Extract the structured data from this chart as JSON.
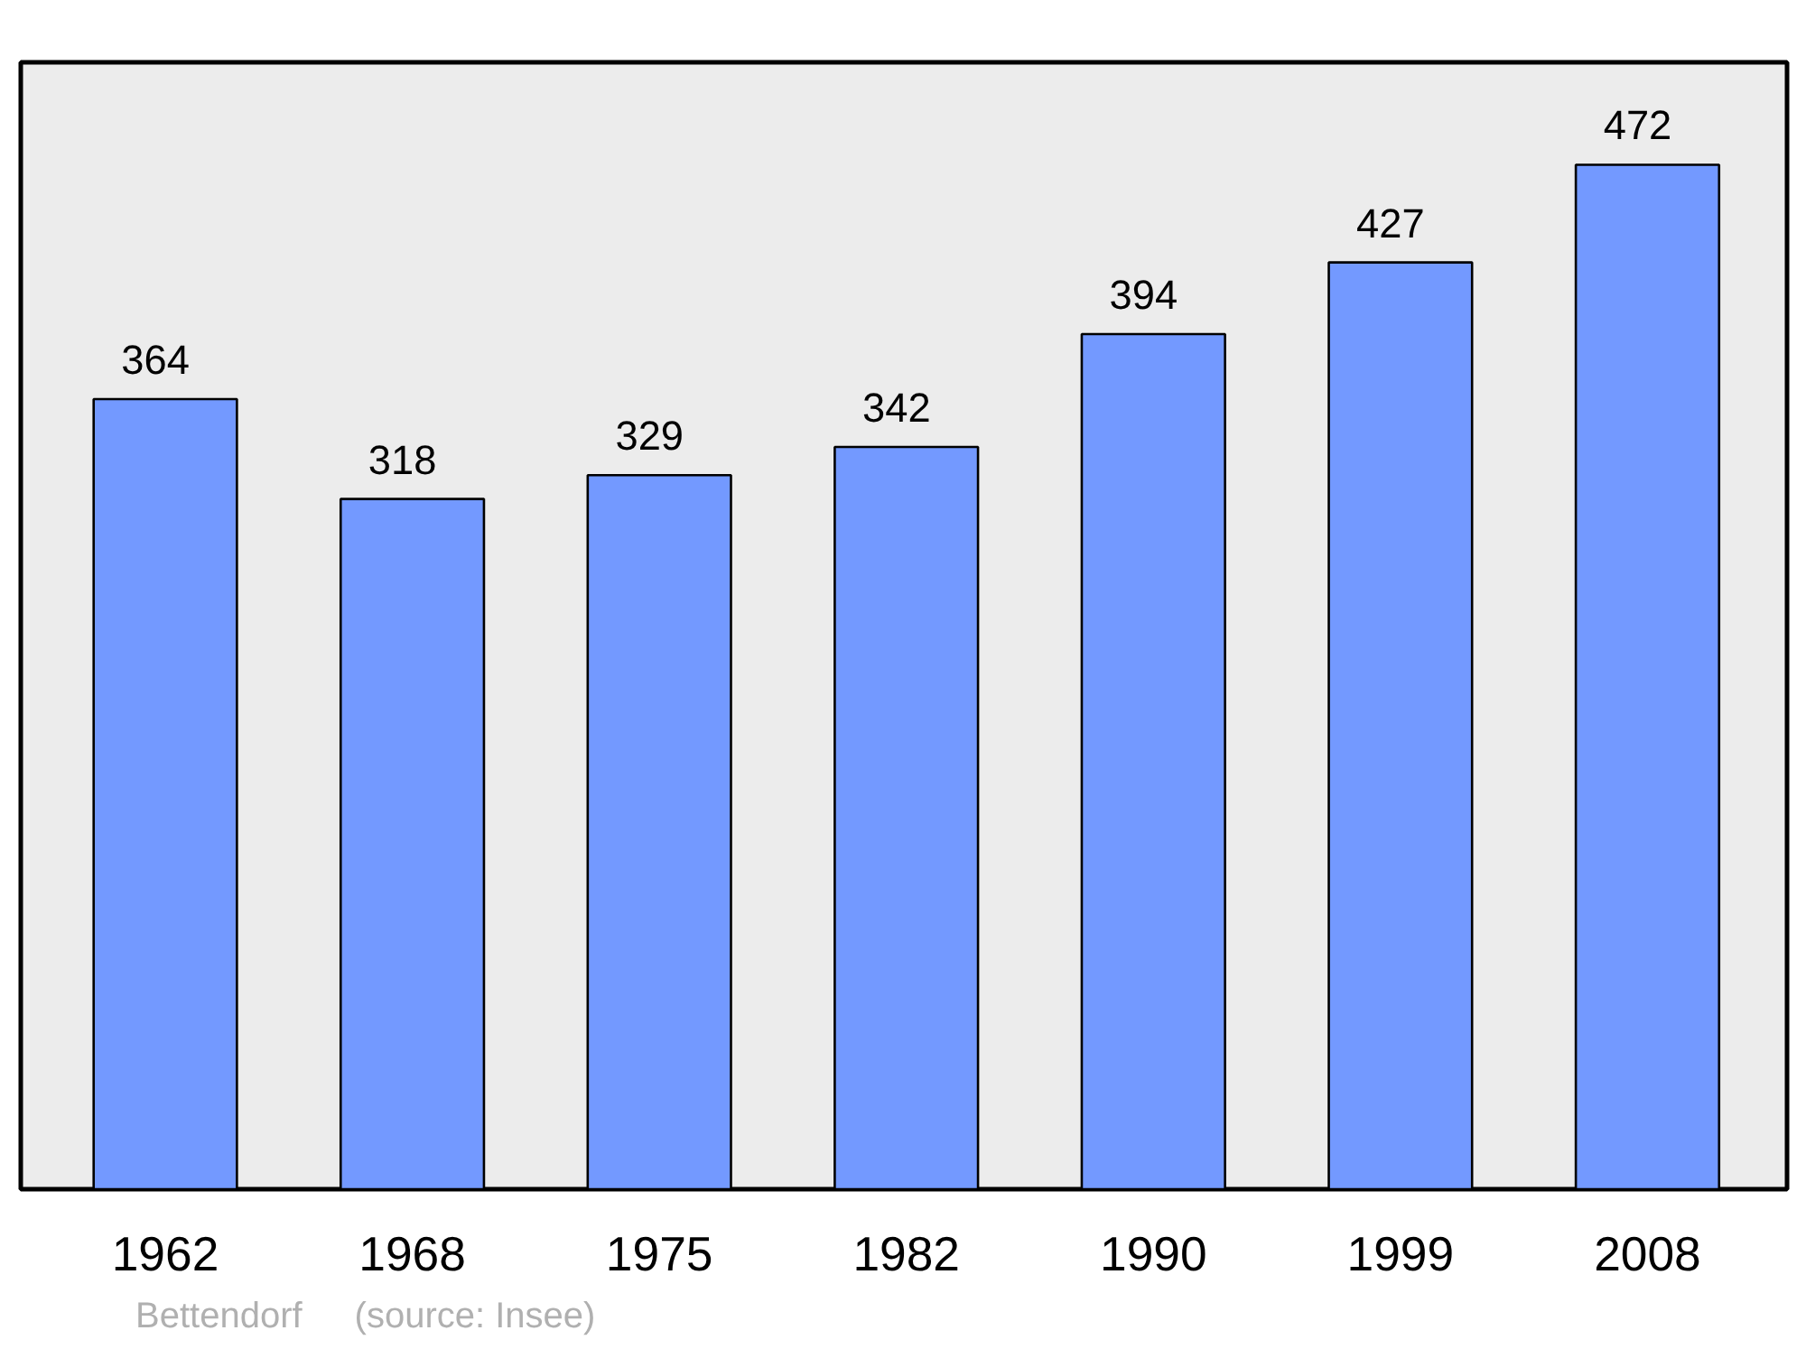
{
  "chart_data": {
    "type": "bar",
    "categories": [
      "1962",
      "1968",
      "1975",
      "1982",
      "1990",
      "1999",
      "2008"
    ],
    "values": [
      364,
      318,
      329,
      342,
      394,
      427,
      472
    ],
    "color": "#7399ff",
    "data_labels": true,
    "grid": false,
    "annotations": [
      "Bettendorf",
      "(source: Insee)"
    ]
  }
}
